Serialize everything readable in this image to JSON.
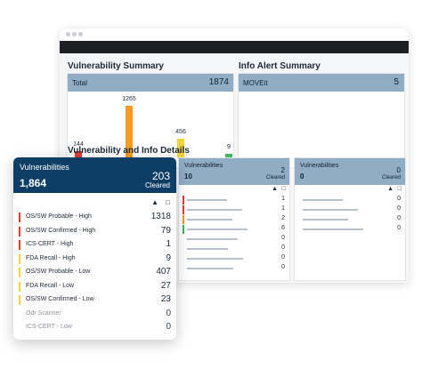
{
  "colors": {
    "header": "#90adc4",
    "front_header": "#0e3e66",
    "red": "#e53b35",
    "orange": "#f39b22",
    "yellow": "#f3d33a",
    "green": "#43b55b",
    "gray": "#c9ced6"
  },
  "vuln_summary": {
    "title": "Vulnerability Summary",
    "total_label": "Total",
    "total_value": "1874",
    "chart_data": {
      "type": "bar",
      "categories": [
        "",
        "",
        "",
        ""
      ],
      "values": [
        144,
        1265,
        456,
        9
      ]
    }
  },
  "info_alert": {
    "title": "Info Alert Summary",
    "item_label": "MOVEit",
    "item_value": "5"
  },
  "details": {
    "title": "Vulnerability and Info Details"
  },
  "card2": {
    "title": "Vulnerabilities",
    "total": "10",
    "count": "2",
    "cleared": "Cleared",
    "rows": [
      "1",
      "1",
      "2",
      "6",
      "0",
      "0",
      "0",
      "0"
    ]
  },
  "card3": {
    "title": "Vulnerabilities",
    "total": "0",
    "count": "0",
    "cleared": "Cleared",
    "rows": [
      "0",
      "0",
      "0",
      "0"
    ]
  },
  "front": {
    "title": "Vulnerabilities",
    "total": "1,864",
    "count": "203",
    "cleared": "Cleared",
    "rows": [
      {
        "label": "OS/SW Probable - High",
        "value": "1318",
        "color": "#e53b35",
        "muted": false
      },
      {
        "label": "OS/SW Confirmed  - High",
        "value": "79",
        "color": "#e53b35",
        "muted": false
      },
      {
        "label": "ICS-CERT - High",
        "value": "1",
        "color": "#e53b35",
        "muted": false
      },
      {
        "label": "FDA Recall - High",
        "value": "9",
        "color": "#f3d33a",
        "muted": false
      },
      {
        "label": "OS/SW Probable - Low",
        "value": "407",
        "color": "#f3d33a",
        "muted": false
      },
      {
        "label": "FDA Recall - Low",
        "value": "27",
        "color": "#f3d33a",
        "muted": false
      },
      {
        "label": "OS/SW Confirmed  - Low",
        "value": "23",
        "color": "#f3d33a",
        "muted": false
      },
      {
        "label": "Odr Scanner",
        "value": "0",
        "color": "",
        "muted": true
      },
      {
        "label": "ICS-CERT - Low",
        "value": "0",
        "color": "",
        "muted": true
      }
    ]
  }
}
